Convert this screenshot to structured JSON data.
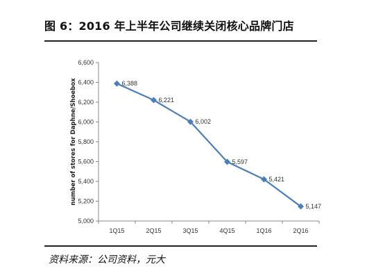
{
  "figure": {
    "title": "图 6：2016 年上半年公司继续关闭核心品牌门店",
    "source": "资料来源：公司资料，元大"
  },
  "chart_data": {
    "type": "line",
    "categories": [
      "1Q15",
      "2Q15",
      "3Q15",
      "4Q15",
      "1Q16",
      "2Q16"
    ],
    "series": [
      {
        "values": [
          6388,
          6221,
          6002,
          5597,
          5421,
          5147
        ],
        "data_labels": [
          "6,388",
          "6,221",
          "6,002",
          "5,597",
          "5,421",
          "5,147"
        ],
        "color": "#4a7ebb"
      }
    ],
    "y_ticks": [
      5000,
      5200,
      5400,
      5600,
      5800,
      6000,
      6200,
      6400,
      6600
    ],
    "y_tick_labels": [
      "5,000",
      "5,200",
      "5,400",
      "5,600",
      "5,800",
      "6,000",
      "6,200",
      "6,400",
      "6,600"
    ],
    "ylim": [
      5000,
      6600
    ],
    "xlabel": "",
    "ylabel": "number of stores for Daphne/Shoebox",
    "grid": false,
    "legend": "none",
    "marker": "diamond"
  }
}
